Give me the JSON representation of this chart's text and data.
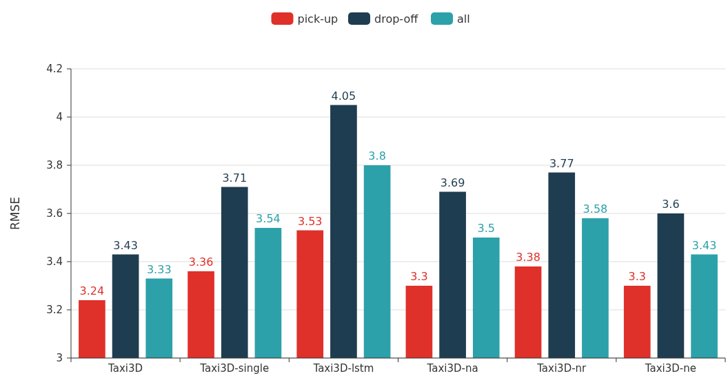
{
  "chart_data": {
    "type": "bar",
    "ylabel": "RMSE",
    "categories": [
      "Taxi3D",
      "Taxi3D-single",
      "Taxi3D-lstm",
      "Taxi3D-na",
      "Taxi3D-nr",
      "Taxi3D-ne"
    ],
    "series": [
      {
        "name": "pick-up",
        "color": "#e0302a",
        "values": [
          3.24,
          3.36,
          3.53,
          3.3,
          3.38,
          3.3
        ]
      },
      {
        "name": "drop-off",
        "color": "#1f3d50",
        "values": [
          3.43,
          3.71,
          4.05,
          3.69,
          3.77,
          3.6
        ]
      },
      {
        "name": "all",
        "color": "#2ca1aa",
        "values": [
          3.33,
          3.54,
          3.8,
          3.5,
          3.58,
          3.43
        ]
      }
    ],
    "ylim": [
      3,
      4.2
    ],
    "yticks": [
      3,
      3.2,
      3.4,
      3.6,
      3.8,
      4,
      4.2
    ],
    "grid": "y",
    "legend": "top",
    "data_labels": true
  }
}
